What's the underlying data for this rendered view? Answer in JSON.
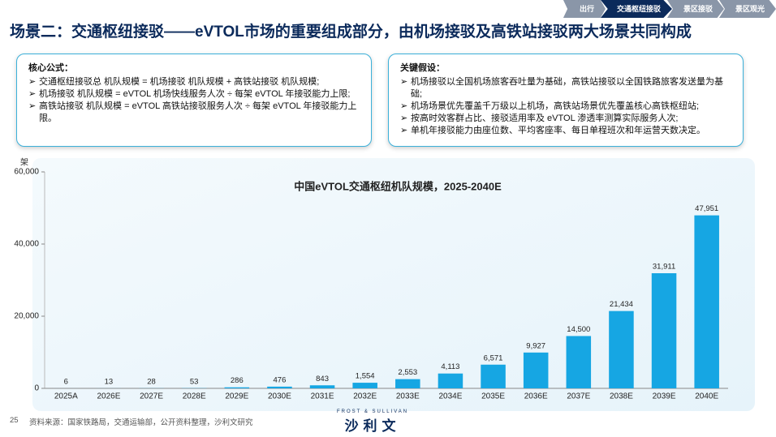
{
  "nav": {
    "tabs": [
      "出行",
      "交通枢纽接驳",
      "景区接驳",
      "景区观光"
    ],
    "active": 1
  },
  "header": {
    "title": "场景二：交通枢纽接驳——eVTOL市场的重要组成部分，由机场接驳及高铁站接驳两大场景共同构成"
  },
  "formula_box": {
    "title": "核心公式：",
    "items": [
      "交通枢纽接驳总 机队规模 = 机场接驳 机队规模 + 高铁站接驳 机队规模;",
      "机场接驳 机队规模 = eVTOL 机场快线服务人次 ÷ 每架 eVTOL 年接驳能力上限;",
      "高铁站接驳 机队规模 = eVTOL 高铁站接驳服务人次 ÷ 每架 eVTOL 年接驳能力上限。"
    ]
  },
  "assumption_box": {
    "title": "关键假设：",
    "items": [
      "机场接驳以全国机场旅客吞吐量为基础，高铁站接驳以全国铁路旅客发送量为基础;",
      "机场场景优先覆盖千万级以上机场，高铁站场景优先覆盖核心高铁枢纽站;",
      "按高时效客群占比、接驳适用率及 eVTOL 渗透率测算实际服务人次;",
      "单机年接驳能力由座位数、平均客座率、每日单程班次和年运营天数决定。"
    ]
  },
  "chart_data": {
    "type": "bar",
    "title": "中国eVTOL交通枢纽机队规模，2025-2040E",
    "y_label": "架",
    "categories": [
      "2025A",
      "2026E",
      "2027E",
      "2028E",
      "2029E",
      "2030E",
      "2031E",
      "2032E",
      "2033E",
      "2034E",
      "2035E",
      "2036E",
      "2037E",
      "2038E",
      "2039E",
      "2040E"
    ],
    "values": [
      6,
      13,
      28,
      53,
      286,
      476,
      843,
      1554,
      2553,
      4113,
      6571,
      9927,
      14500,
      21434,
      31911,
      47951
    ],
    "value_labels": [
      "6",
      "13",
      "28",
      "53",
      "286",
      "476",
      "843",
      "1,554",
      "2,553",
      "4,113",
      "6,571",
      "9,927",
      "14,500",
      "21,434",
      "31,911",
      "47,951"
    ],
    "color": "#16a6e3",
    "ylim": [
      0,
      60000
    ],
    "yticks": [
      0,
      {
        "value": 20000,
        "label": "20,000"
      },
      {
        "value": 40000,
        "label": "40,000"
      },
      {
        "value": 60000,
        "label": "60,000"
      }
    ],
    "grid": false
  },
  "footer": {
    "page": "25",
    "source": "资料来源：国家铁路局，交通运输部，公开资料整理，沙利文研究",
    "logo_small": "FROST & SULLIVAN",
    "logo": "沙利文"
  }
}
